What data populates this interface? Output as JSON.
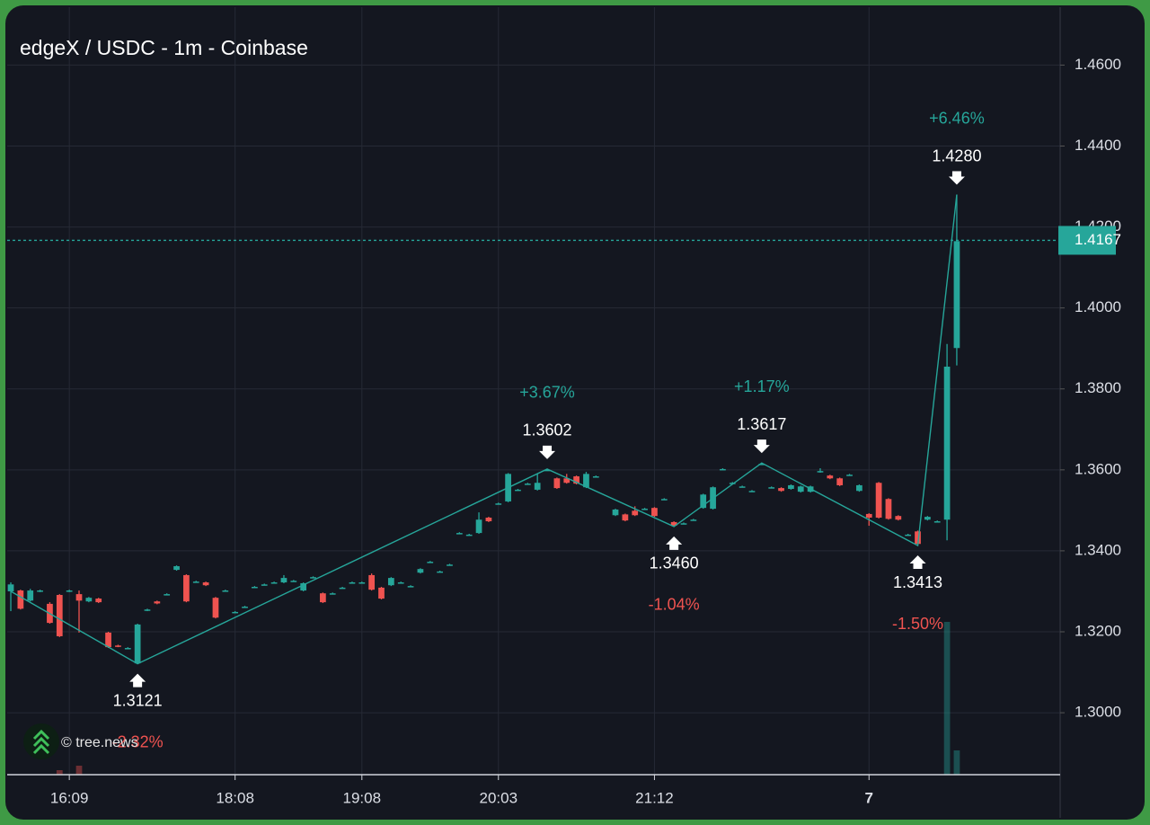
{
  "chart_data": {
    "type": "candlestick",
    "title": "edgeX / USDC - 1m - Coinbase",
    "watermark": "© tree.news",
    "up_color": "#26a69a",
    "down_color": "#ef5350",
    "grid": true,
    "xlim": [
      -0.37,
      107.6
    ],
    "ylim": [
      1.2847,
      1.4743
    ],
    "xticks": [
      {
        "value": 6,
        "label": "16:09"
      },
      {
        "value": 23,
        "label": "18:08"
      },
      {
        "value": 36,
        "label": "19:08"
      },
      {
        "value": 50,
        "label": "20:03"
      },
      {
        "value": 66,
        "label": "21:12"
      },
      {
        "value": 88,
        "label": "7"
      }
    ],
    "yticks": [
      {
        "value": 1.3,
        "label": "1.3000"
      },
      {
        "value": 1.32,
        "label": "1.3200"
      },
      {
        "value": 1.34,
        "label": "1.3400"
      },
      {
        "value": 1.36,
        "label": "1.3600"
      },
      {
        "value": 1.38,
        "label": "1.3800"
      },
      {
        "value": 1.4,
        "label": "1.4000"
      },
      {
        "value": 1.42,
        "label": "1.4200"
      },
      {
        "value": 1.44,
        "label": "1.4400"
      },
      {
        "value": 1.46,
        "label": "1.4600"
      }
    ],
    "last_price": {
      "value": 1.4167,
      "label": "1.4167"
    },
    "candles": [
      {
        "x": 0,
        "o": 1.33,
        "h": 1.3322,
        "l": 1.3251,
        "c": 1.3317
      },
      {
        "x": 1,
        "o": 1.3302,
        "h": 1.3304,
        "l": 1.3255,
        "c": 1.3257
      },
      {
        "x": 2,
        "o": 1.3277,
        "h": 1.3306,
        "l": 1.3275,
        "c": 1.3302
      },
      {
        "x": 3,
        "o": 1.33,
        "h": 1.3304,
        "l": 1.3298,
        "c": 1.3302
      },
      {
        "x": 4,
        "o": 1.3269,
        "h": 1.3273,
        "l": 1.322,
        "c": 1.3222
      },
      {
        "x": 5,
        "o": 1.3291,
        "h": 1.3293,
        "l": 1.3187,
        "c": 1.3189
      },
      {
        "x": 6,
        "o": 1.33,
        "h": 1.3304,
        "l": 1.3298,
        "c": 1.3302
      },
      {
        "x": 7,
        "o": 1.3293,
        "h": 1.3302,
        "l": 1.3198,
        "c": 1.3277
      },
      {
        "x": 8,
        "o": 1.3275,
        "h": 1.3286,
        "l": 1.3273,
        "c": 1.3284
      },
      {
        "x": 9,
        "o": 1.3282,
        "h": 1.3284,
        "l": 1.3271,
        "c": 1.3273
      },
      {
        "x": 10,
        "o": 1.3198,
        "h": 1.32,
        "l": 1.316,
        "c": 1.3162
      },
      {
        "x": 11,
        "o": 1.3166,
        "h": 1.3168,
        "l": 1.3162,
        "c": 1.3164
      },
      {
        "x": 12,
        "o": 1.316,
        "h": 1.3162,
        "l": 1.3158,
        "c": 1.316
      },
      {
        "x": 13,
        "o": 1.3122,
        "h": 1.322,
        "l": 1.3121,
        "c": 1.3218
      },
      {
        "x": 14,
        "o": 1.3253,
        "h": 1.3257,
        "l": 1.3251,
        "c": 1.3255
      },
      {
        "x": 15,
        "o": 1.3275,
        "h": 1.3277,
        "l": 1.3268,
        "c": 1.327
      },
      {
        "x": 16,
        "o": 1.3293,
        "h": 1.3295,
        "l": 1.3291,
        "c": 1.3293
      },
      {
        "x": 17,
        "o": 1.3353,
        "h": 1.3364,
        "l": 1.3351,
        "c": 1.3362
      },
      {
        "x": 18,
        "o": 1.334,
        "h": 1.3342,
        "l": 1.3273,
        "c": 1.3275
      },
      {
        "x": 19,
        "o": 1.3324,
        "h": 1.3326,
        "l": 1.3322,
        "c": 1.3324
      },
      {
        "x": 20,
        "o": 1.3322,
        "h": 1.3324,
        "l": 1.3313,
        "c": 1.3315
      },
      {
        "x": 21,
        "o": 1.3284,
        "h": 1.3286,
        "l": 1.3233,
        "c": 1.3235
      },
      {
        "x": 22,
        "o": 1.3302,
        "h": 1.3304,
        "l": 1.33,
        "c": 1.3302
      },
      {
        "x": 23,
        "o": 1.3249,
        "h": 1.3251,
        "l": 1.3247,
        "c": 1.3249
      },
      {
        "x": 24,
        "o": 1.3262,
        "h": 1.3264,
        "l": 1.326,
        "c": 1.3262
      },
      {
        "x": 25,
        "o": 1.3311,
        "h": 1.3313,
        "l": 1.3309,
        "c": 1.3311
      },
      {
        "x": 26,
        "o": 1.3317,
        "h": 1.3319,
        "l": 1.3315,
        "c": 1.3317
      },
      {
        "x": 27,
        "o": 1.3322,
        "h": 1.3324,
        "l": 1.332,
        "c": 1.3322
      },
      {
        "x": 28,
        "o": 1.3322,
        "h": 1.334,
        "l": 1.332,
        "c": 1.3333
      },
      {
        "x": 29,
        "o": 1.3326,
        "h": 1.3328,
        "l": 1.3324,
        "c": 1.3326
      },
      {
        "x": 30,
        "o": 1.3302,
        "h": 1.3322,
        "l": 1.33,
        "c": 1.332
      },
      {
        "x": 31,
        "o": 1.3335,
        "h": 1.3337,
        "l": 1.3333,
        "c": 1.3335
      },
      {
        "x": 32,
        "o": 1.3295,
        "h": 1.3297,
        "l": 1.3271,
        "c": 1.3273
      },
      {
        "x": 33,
        "o": 1.3295,
        "h": 1.3297,
        "l": 1.3293,
        "c": 1.3295
      },
      {
        "x": 34,
        "o": 1.3309,
        "h": 1.3311,
        "l": 1.3307,
        "c": 1.3309
      },
      {
        "x": 35,
        "o": 1.3322,
        "h": 1.3324,
        "l": 1.332,
        "c": 1.3322
      },
      {
        "x": 36,
        "o": 1.3322,
        "h": 1.3324,
        "l": 1.332,
        "c": 1.3322
      },
      {
        "x": 37,
        "o": 1.334,
        "h": 1.3344,
        "l": 1.3302,
        "c": 1.3304
      },
      {
        "x": 38,
        "o": 1.3309,
        "h": 1.3311,
        "l": 1.328,
        "c": 1.3282
      },
      {
        "x": 39,
        "o": 1.3315,
        "h": 1.3335,
        "l": 1.3313,
        "c": 1.3333
      },
      {
        "x": 40,
        "o": 1.3322,
        "h": 1.3324,
        "l": 1.332,
        "c": 1.3322
      },
      {
        "x": 41,
        "o": 1.3313,
        "h": 1.3315,
        "l": 1.3311,
        "c": 1.3313
      },
      {
        "x": 42,
        "o": 1.3346,
        "h": 1.3357,
        "l": 1.3344,
        "c": 1.3355
      },
      {
        "x": 43,
        "o": 1.3373,
        "h": 1.3375,
        "l": 1.3371,
        "c": 1.3373
      },
      {
        "x": 44,
        "o": 1.3349,
        "h": 1.3351,
        "l": 1.3347,
        "c": 1.3349
      },
      {
        "x": 45,
        "o": 1.3366,
        "h": 1.3368,
        "l": 1.3364,
        "c": 1.3366
      },
      {
        "x": 46,
        "o": 1.3444,
        "h": 1.3446,
        "l": 1.3442,
        "c": 1.3444
      },
      {
        "x": 47,
        "o": 1.344,
        "h": 1.3442,
        "l": 1.3438,
        "c": 1.344
      },
      {
        "x": 48,
        "o": 1.3444,
        "h": 1.3495,
        "l": 1.3442,
        "c": 1.3477
      },
      {
        "x": 49,
        "o": 1.3482,
        "h": 1.3484,
        "l": 1.3471,
        "c": 1.3473
      },
      {
        "x": 50,
        "o": 1.3517,
        "h": 1.3519,
        "l": 1.3515,
        "c": 1.3517
      },
      {
        "x": 51,
        "o": 1.3522,
        "h": 1.3592,
        "l": 1.352,
        "c": 1.359
      },
      {
        "x": 52,
        "o": 1.3551,
        "h": 1.3553,
        "l": 1.3549,
        "c": 1.3551
      },
      {
        "x": 53,
        "o": 1.3566,
        "h": 1.3568,
        "l": 1.3564,
        "c": 1.3566
      },
      {
        "x": 54,
        "o": 1.3551,
        "h": 1.359,
        "l": 1.3549,
        "c": 1.3568
      },
      {
        "x": 55,
        "o": 1.36,
        "h": 1.3602,
        "l": 1.3598,
        "c": 1.36
      },
      {
        "x": 56,
        "o": 1.3579,
        "h": 1.3581,
        "l": 1.3553,
        "c": 1.3555
      },
      {
        "x": 57,
        "o": 1.3579,
        "h": 1.359,
        "l": 1.3566,
        "c": 1.3568
      },
      {
        "x": 58,
        "o": 1.3584,
        "h": 1.3586,
        "l": 1.3564,
        "c": 1.3566
      },
      {
        "x": 59,
        "o": 1.3557,
        "h": 1.3595,
        "l": 1.3555,
        "c": 1.359
      },
      {
        "x": 60,
        "o": 1.3584,
        "h": 1.3586,
        "l": 1.3582,
        "c": 1.3584
      },
      {
        "x": 62,
        "o": 1.3488,
        "h": 1.3504,
        "l": 1.3486,
        "c": 1.3502
      },
      {
        "x": 63,
        "o": 1.349,
        "h": 1.3492,
        "l": 1.3473,
        "c": 1.3475
      },
      {
        "x": 64,
        "o": 1.3499,
        "h": 1.351,
        "l": 1.3486,
        "c": 1.3488
      },
      {
        "x": 65,
        "o": 1.3504,
        "h": 1.3506,
        "l": 1.3502,
        "c": 1.3504
      },
      {
        "x": 66,
        "o": 1.3506,
        "h": 1.3508,
        "l": 1.3484,
        "c": 1.3486
      },
      {
        "x": 67,
        "o": 1.3528,
        "h": 1.353,
        "l": 1.3526,
        "c": 1.3528
      },
      {
        "x": 68,
        "o": 1.3471,
        "h": 1.3473,
        "l": 1.346,
        "c": 1.3462
      },
      {
        "x": 69,
        "o": 1.3468,
        "h": 1.347,
        "l": 1.3466,
        "c": 1.3468
      },
      {
        "x": 70,
        "o": 1.3477,
        "h": 1.3479,
        "l": 1.3475,
        "c": 1.3477
      },
      {
        "x": 71,
        "o": 1.3506,
        "h": 1.3541,
        "l": 1.3504,
        "c": 1.3539
      },
      {
        "x": 72,
        "o": 1.3504,
        "h": 1.3559,
        "l": 1.3502,
        "c": 1.3557
      },
      {
        "x": 73,
        "o": 1.3602,
        "h": 1.3604,
        "l": 1.36,
        "c": 1.3602
      },
      {
        "x": 74,
        "o": 1.3568,
        "h": 1.357,
        "l": 1.3566,
        "c": 1.3568
      },
      {
        "x": 75,
        "o": 1.3559,
        "h": 1.3561,
        "l": 1.3557,
        "c": 1.3559
      },
      {
        "x": 76,
        "o": 1.3548,
        "h": 1.355,
        "l": 1.3546,
        "c": 1.3548
      },
      {
        "x": 77,
        "o": 1.3615,
        "h": 1.3617,
        "l": 1.3613,
        "c": 1.3615
      },
      {
        "x": 78,
        "o": 1.3557,
        "h": 1.3559,
        "l": 1.3555,
        "c": 1.3557
      },
      {
        "x": 79,
        "o": 1.3555,
        "h": 1.3557,
        "l": 1.3546,
        "c": 1.3548
      },
      {
        "x": 80,
        "o": 1.3553,
        "h": 1.3564,
        "l": 1.3551,
        "c": 1.3562
      },
      {
        "x": 81,
        "o": 1.3546,
        "h": 1.3561,
        "l": 1.3544,
        "c": 1.3559
      },
      {
        "x": 82,
        "o": 1.3546,
        "h": 1.3561,
        "l": 1.3544,
        "c": 1.3559
      },
      {
        "x": 83,
        "o": 1.3595,
        "h": 1.3604,
        "l": 1.3593,
        "c": 1.3597
      },
      {
        "x": 84,
        "o": 1.3586,
        "h": 1.3588,
        "l": 1.3577,
        "c": 1.3579
      },
      {
        "x": 85,
        "o": 1.3579,
        "h": 1.3581,
        "l": 1.356,
        "c": 1.3562
      },
      {
        "x": 86,
        "o": 1.3588,
        "h": 1.359,
        "l": 1.3586,
        "c": 1.3588
      },
      {
        "x": 87,
        "o": 1.3548,
        "h": 1.3564,
        "l": 1.3546,
        "c": 1.3562
      },
      {
        "x": 88,
        "o": 1.3491,
        "h": 1.3493,
        "l": 1.3462,
        "c": 1.3482
      },
      {
        "x": 89,
        "o": 1.3568,
        "h": 1.357,
        "l": 1.348,
        "c": 1.3482
      },
      {
        "x": 90,
        "o": 1.3528,
        "h": 1.353,
        "l": 1.3477,
        "c": 1.3479
      },
      {
        "x": 91,
        "o": 1.3486,
        "h": 1.3488,
        "l": 1.3475,
        "c": 1.3477
      },
      {
        "x": 92,
        "o": 1.344,
        "h": 1.3442,
        "l": 1.3438,
        "c": 1.344
      },
      {
        "x": 93,
        "o": 1.3448,
        "h": 1.345,
        "l": 1.3413,
        "c": 1.3417
      },
      {
        "x": 94,
        "o": 1.3477,
        "h": 1.3486,
        "l": 1.3475,
        "c": 1.3484
      },
      {
        "x": 95,
        "o": 1.3473,
        "h": 1.3475,
        "l": 1.3471,
        "c": 1.3473
      },
      {
        "x": 96,
        "o": 1.3477,
        "h": 1.3911,
        "l": 1.3426,
        "c": 1.3855
      },
      {
        "x": 97,
        "o": 1.3901,
        "h": 1.428,
        "l": 1.3858,
        "c": 1.4165
      }
    ],
    "volume": {
      "x": [
        5,
        7,
        96,
        97
      ],
      "values": [
        5,
        10,
        170,
        27
      ]
    },
    "zigzag": {
      "x": [
        0,
        13,
        55,
        68,
        77,
        93,
        97
      ],
      "values": [
        1.33,
        1.3121,
        1.3602,
        1.346,
        1.3617,
        1.3413,
        1.428
      ],
      "value_labels": [
        null,
        "1.3121",
        "1.3602",
        "1.3460",
        "1.3617",
        "1.3413",
        "1.4280"
      ],
      "changes": [
        null,
        -2.32,
        3.67,
        -1.04,
        1.17,
        -1.5,
        6.46
      ],
      "change_labels": [
        null,
        "-2.32%",
        "+3.67%",
        "-1.04%",
        "+1.17%",
        "-1.50%",
        "+6.46%"
      ],
      "color": "#26a69a"
    }
  }
}
